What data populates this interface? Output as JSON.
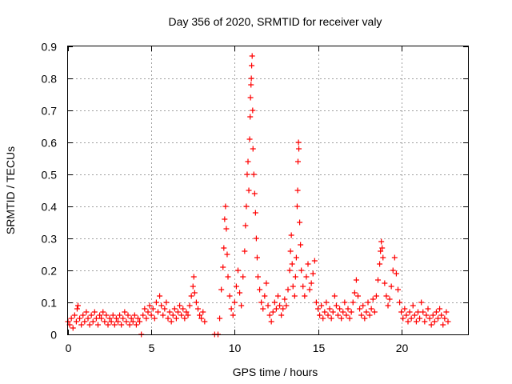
{
  "chart_data": {
    "type": "scatter",
    "title": "Day 356 of 2020, SRMTID for receiver valy",
    "xlabel": "GPS time / hours",
    "ylabel": "SRMTID / TECUs",
    "xlim": [
      0,
      24
    ],
    "ylim": [
      0,
      0.9
    ],
    "xticks": [
      "0",
      "5",
      "10",
      "15",
      "20"
    ],
    "yticks": [
      "0",
      "0.1",
      "0.2",
      "0.3",
      "0.4",
      "0.5",
      "0.6",
      "0.7",
      "0.8",
      "0.9"
    ],
    "grid": true,
    "marker": "+",
    "color": "#ff0000",
    "series": [
      {
        "name": "SRMTID",
        "points": [
          [
            0.0,
            0.04
          ],
          [
            0.1,
            0.03
          ],
          [
            0.2,
            0.05
          ],
          [
            0.3,
            0.02
          ],
          [
            0.4,
            0.06
          ],
          [
            0.5,
            0.04
          ],
          [
            0.55,
            0.08
          ],
          [
            0.6,
            0.09
          ],
          [
            0.7,
            0.05
          ],
          [
            0.8,
            0.03
          ],
          [
            0.9,
            0.06
          ],
          [
            1.0,
            0.04
          ],
          [
            1.1,
            0.07
          ],
          [
            1.2,
            0.05
          ],
          [
            1.3,
            0.03
          ],
          [
            1.4,
            0.06
          ],
          [
            1.5,
            0.04
          ],
          [
            1.6,
            0.07
          ],
          [
            1.7,
            0.05
          ],
          [
            1.8,
            0.03
          ],
          [
            1.9,
            0.06
          ],
          [
            2.0,
            0.05
          ],
          [
            2.1,
            0.07
          ],
          [
            2.2,
            0.04
          ],
          [
            2.3,
            0.06
          ],
          [
            2.4,
            0.03
          ],
          [
            2.5,
            0.05
          ],
          [
            2.6,
            0.04
          ],
          [
            2.7,
            0.06
          ],
          [
            2.8,
            0.03
          ],
          [
            2.9,
            0.05
          ],
          [
            3.0,
            0.04
          ],
          [
            3.1,
            0.06
          ],
          [
            3.2,
            0.03
          ],
          [
            3.3,
            0.05
          ],
          [
            3.4,
            0.07
          ],
          [
            3.5,
            0.04
          ],
          [
            3.6,
            0.06
          ],
          [
            3.7,
            0.03
          ],
          [
            3.8,
            0.05
          ],
          [
            3.9,
            0.04
          ],
          [
            4.0,
            0.06
          ],
          [
            4.1,
            0.03
          ],
          [
            4.2,
            0.05
          ],
          [
            4.3,
            0.04
          ],
          [
            4.4,
            0.0
          ],
          [
            4.5,
            0.06
          ],
          [
            4.6,
            0.08
          ],
          [
            4.7,
            0.05
          ],
          [
            4.8,
            0.07
          ],
          [
            4.9,
            0.09
          ],
          [
            5.0,
            0.06
          ],
          [
            5.1,
            0.08
          ],
          [
            5.2,
            0.05
          ],
          [
            5.3,
            0.1
          ],
          [
            5.4,
            0.07
          ],
          [
            5.5,
            0.12
          ],
          [
            5.6,
            0.09
          ],
          [
            5.7,
            0.06
          ],
          [
            5.8,
            0.08
          ],
          [
            5.9,
            0.1
          ],
          [
            6.0,
            0.05
          ],
          [
            6.1,
            0.07
          ],
          [
            6.2,
            0.04
          ],
          [
            6.3,
            0.06
          ],
          [
            6.4,
            0.08
          ],
          [
            6.5,
            0.05
          ],
          [
            6.6,
            0.07
          ],
          [
            6.7,
            0.09
          ],
          [
            6.8,
            0.06
          ],
          [
            6.9,
            0.08
          ],
          [
            7.0,
            0.05
          ],
          [
            7.1,
            0.07
          ],
          [
            7.2,
            0.06
          ],
          [
            7.3,
            0.09
          ],
          [
            7.4,
            0.12
          ],
          [
            7.5,
            0.15
          ],
          [
            7.55,
            0.18
          ],
          [
            7.6,
            0.13
          ],
          [
            7.7,
            0.1
          ],
          [
            7.8,
            0.08
          ],
          [
            7.9,
            0.06
          ],
          [
            8.0,
            0.05
          ],
          [
            8.1,
            0.07
          ],
          [
            8.2,
            0.04
          ],
          [
            8.8,
            0.0
          ],
          [
            9.0,
            0.0
          ],
          [
            9.1,
            0.05
          ],
          [
            9.2,
            0.14
          ],
          [
            9.3,
            0.21
          ],
          [
            9.35,
            0.27
          ],
          [
            9.4,
            0.36
          ],
          [
            9.45,
            0.4
          ],
          [
            9.5,
            0.33
          ],
          [
            9.55,
            0.25
          ],
          [
            9.6,
            0.18
          ],
          [
            9.7,
            0.12
          ],
          [
            9.8,
            0.08
          ],
          [
            9.9,
            0.06
          ],
          [
            10.0,
            0.1
          ],
          [
            10.1,
            0.15
          ],
          [
            10.2,
            0.2
          ],
          [
            10.3,
            0.13
          ],
          [
            10.4,
            0.09
          ],
          [
            10.5,
            0.18
          ],
          [
            10.6,
            0.26
          ],
          [
            10.65,
            0.34
          ],
          [
            10.7,
            0.4
          ],
          [
            10.75,
            0.5
          ],
          [
            10.8,
            0.54
          ],
          [
            10.85,
            0.45
          ],
          [
            10.9,
            0.61
          ],
          [
            10.93,
            0.68
          ],
          [
            10.95,
            0.74
          ],
          [
            10.98,
            0.78
          ],
          [
            11.0,
            0.8
          ],
          [
            11.02,
            0.84
          ],
          [
            11.05,
            0.87
          ],
          [
            11.08,
            0.7
          ],
          [
            11.1,
            0.58
          ],
          [
            11.15,
            0.5
          ],
          [
            11.2,
            0.44
          ],
          [
            11.25,
            0.38
          ],
          [
            11.3,
            0.3
          ],
          [
            11.35,
            0.24
          ],
          [
            11.4,
            0.18
          ],
          [
            11.5,
            0.14
          ],
          [
            11.6,
            0.1
          ],
          [
            11.7,
            0.08
          ],
          [
            11.8,
            0.12
          ],
          [
            11.9,
            0.16
          ],
          [
            12.0,
            0.09
          ],
          [
            12.1,
            0.06
          ],
          [
            12.2,
            0.04
          ],
          [
            12.3,
            0.07
          ],
          [
            12.4,
            0.1
          ],
          [
            12.5,
            0.08
          ],
          [
            12.6,
            0.12
          ],
          [
            12.7,
            0.09
          ],
          [
            12.8,
            0.06
          ],
          [
            12.9,
            0.08
          ],
          [
            13.0,
            0.11
          ],
          [
            13.1,
            0.09
          ],
          [
            13.2,
            0.14
          ],
          [
            13.3,
            0.2
          ],
          [
            13.35,
            0.26
          ],
          [
            13.4,
            0.31
          ],
          [
            13.45,
            0.22
          ],
          [
            13.5,
            0.15
          ],
          [
            13.6,
            0.12
          ],
          [
            13.65,
            0.18
          ],
          [
            13.7,
            0.24
          ],
          [
            13.75,
            0.4
          ],
          [
            13.78,
            0.45
          ],
          [
            13.8,
            0.54
          ],
          [
            13.83,
            0.6
          ],
          [
            13.85,
            0.58
          ],
          [
            13.9,
            0.35
          ],
          [
            13.95,
            0.28
          ],
          [
            14.0,
            0.2
          ],
          [
            14.1,
            0.15
          ],
          [
            14.2,
            0.12
          ],
          [
            14.3,
            0.18
          ],
          [
            14.4,
            0.22
          ],
          [
            14.5,
            0.14
          ],
          [
            14.6,
            0.16
          ],
          [
            14.7,
            0.19
          ],
          [
            14.8,
            0.23
          ],
          [
            14.9,
            0.1
          ],
          [
            15.0,
            0.08
          ],
          [
            15.1,
            0.06
          ],
          [
            15.2,
            0.09
          ],
          [
            15.3,
            0.05
          ],
          [
            15.4,
            0.07
          ],
          [
            15.5,
            0.1
          ],
          [
            15.6,
            0.06
          ],
          [
            15.7,
            0.08
          ],
          [
            15.8,
            0.05
          ],
          [
            15.9,
            0.07
          ],
          [
            16.0,
            0.12
          ],
          [
            16.1,
            0.09
          ],
          [
            16.2,
            0.06
          ],
          [
            16.3,
            0.08
          ],
          [
            16.4,
            0.05
          ],
          [
            16.5,
            0.07
          ],
          [
            16.6,
            0.1
          ],
          [
            16.7,
            0.06
          ],
          [
            16.8,
            0.08
          ],
          [
            16.9,
            0.05
          ],
          [
            17.0,
            0.07
          ],
          [
            17.1,
            0.1
          ],
          [
            17.2,
            0.13
          ],
          [
            17.3,
            0.17
          ],
          [
            17.4,
            0.12
          ],
          [
            17.5,
            0.08
          ],
          [
            17.6,
            0.06
          ],
          [
            17.7,
            0.09
          ],
          [
            17.8,
            0.05
          ],
          [
            17.9,
            0.07
          ],
          [
            18.0,
            0.1
          ],
          [
            18.1,
            0.06
          ],
          [
            18.2,
            0.08
          ],
          [
            18.3,
            0.11
          ],
          [
            18.4,
            0.07
          ],
          [
            18.5,
            0.12
          ],
          [
            18.6,
            0.17
          ],
          [
            18.7,
            0.22
          ],
          [
            18.75,
            0.26
          ],
          [
            18.8,
            0.29
          ],
          [
            18.85,
            0.27
          ],
          [
            18.9,
            0.24
          ],
          [
            19.0,
            0.16
          ],
          [
            19.1,
            0.12
          ],
          [
            19.2,
            0.09
          ],
          [
            19.3,
            0.11
          ],
          [
            19.4,
            0.15
          ],
          [
            19.5,
            0.2
          ],
          [
            19.6,
            0.24
          ],
          [
            19.7,
            0.19
          ],
          [
            19.8,
            0.14
          ],
          [
            19.9,
            0.1
          ],
          [
            20.0,
            0.07
          ],
          [
            20.1,
            0.05
          ],
          [
            20.2,
            0.08
          ],
          [
            20.3,
            0.06
          ],
          [
            20.4,
            0.04
          ],
          [
            20.5,
            0.07
          ],
          [
            20.6,
            0.05
          ],
          [
            20.7,
            0.09
          ],
          [
            20.8,
            0.06
          ],
          [
            20.9,
            0.04
          ],
          [
            21.0,
            0.07
          ],
          [
            21.1,
            0.05
          ],
          [
            21.2,
            0.1
          ],
          [
            21.3,
            0.07
          ],
          [
            21.4,
            0.04
          ],
          [
            21.5,
            0.06
          ],
          [
            21.6,
            0.08
          ],
          [
            21.7,
            0.05
          ],
          [
            21.8,
            0.03
          ],
          [
            21.9,
            0.06
          ],
          [
            22.0,
            0.04
          ],
          [
            22.1,
            0.07
          ],
          [
            22.2,
            0.05
          ],
          [
            22.3,
            0.08
          ],
          [
            22.4,
            0.06
          ],
          [
            22.5,
            0.03
          ],
          [
            22.6,
            0.05
          ],
          [
            22.7,
            0.07
          ],
          [
            22.8,
            0.04
          ]
        ]
      }
    ]
  }
}
